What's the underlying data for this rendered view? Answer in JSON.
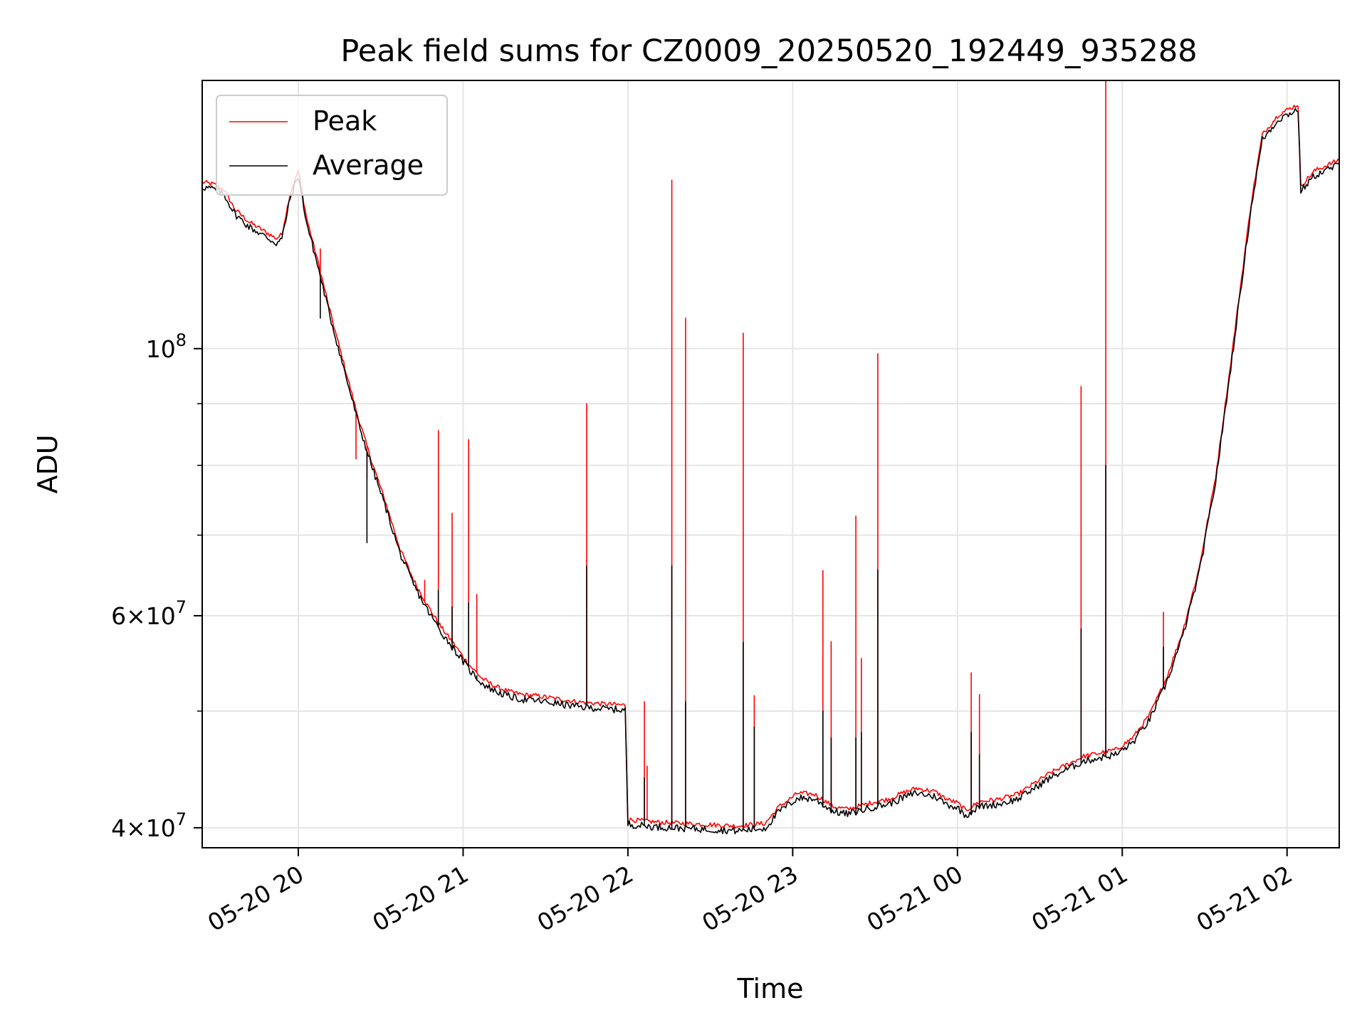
{
  "chart_data": {
    "type": "line",
    "title": "Peak field sums for CZ0009_20250520_192449_935288",
    "xlabel": "Time",
    "ylabel": "ADU",
    "yscale": "log",
    "xlim": [
      "2025-05-20 19:25",
      "2025-05-21 02:19"
    ],
    "ylim": [
      38500000,
      167000000
    ],
    "grid": true,
    "legend_position": "upper-left",
    "x_ticks": [
      {
        "value": "2025-05-20 20:00",
        "label": "05-20 20"
      },
      {
        "value": "2025-05-20 21:00",
        "label": "05-20 21"
      },
      {
        "value": "2025-05-20 22:00",
        "label": "05-20 22"
      },
      {
        "value": "2025-05-20 23:00",
        "label": "05-20 23"
      },
      {
        "value": "2025-05-21 00:00",
        "label": "05-21 00"
      },
      {
        "value": "2025-05-21 01:00",
        "label": "05-21 01"
      },
      {
        "value": "2025-05-21 02:00",
        "label": "05-21 02"
      }
    ],
    "y_ticks": [
      {
        "value": 40000000,
        "base": "4×10",
        "exp": "7"
      },
      {
        "value": 60000000,
        "base": "6×10",
        "exp": "7"
      },
      {
        "value": 100000000,
        "base": "10",
        "exp": "8"
      }
    ],
    "y_minor_ticks": [
      50000000,
      70000000,
      80000000,
      90000000
    ],
    "series": [
      {
        "name": "Peak",
        "color": "#ff0000",
        "baseline": [
          [
            "2025-05-20 19:25",
            137000000
          ],
          [
            "2025-05-20 19:29",
            136500000
          ],
          [
            "2025-05-20 19:33",
            135000000
          ],
          [
            "2025-05-20 19:37",
            130000000
          ],
          [
            "2025-05-20 19:42",
            127000000
          ],
          [
            "2025-05-20 19:47",
            125000000
          ],
          [
            "2025-05-20 19:52",
            123000000
          ],
          [
            "2025-05-20 19:54",
            124000000
          ],
          [
            "2025-05-20 19:57",
            134000000
          ],
          [
            "2025-05-20 20:00",
            140000000
          ],
          [
            "2025-05-20 20:03",
            128000000
          ],
          [
            "2025-05-20 20:07",
            118000000
          ],
          [
            "2025-05-20 20:12",
            106000000
          ],
          [
            "2025-05-20 20:17",
            96000000
          ],
          [
            "2025-05-20 20:22",
            87000000
          ],
          [
            "2025-05-20 20:27",
            80000000
          ],
          [
            "2025-05-20 20:32",
            74000000
          ],
          [
            "2025-05-20 20:37",
            68000000
          ],
          [
            "2025-05-20 20:42",
            64000000
          ],
          [
            "2025-05-20 20:47",
            61000000
          ],
          [
            "2025-05-20 20:52",
            58500000
          ],
          [
            "2025-05-20 20:57",
            56500000
          ],
          [
            "2025-05-20 21:02",
            54500000
          ],
          [
            "2025-05-20 21:07",
            53000000
          ],
          [
            "2025-05-20 21:12",
            52200000
          ],
          [
            "2025-05-20 21:17",
            51700000
          ],
          [
            "2025-05-20 21:22",
            51400000
          ],
          [
            "2025-05-20 21:27",
            51300000
          ],
          [
            "2025-05-20 21:32",
            51100000
          ],
          [
            "2025-05-20 21:37",
            50900000
          ],
          [
            "2025-05-20 21:42",
            50700000
          ],
          [
            "2025-05-20 21:47",
            50600000
          ],
          [
            "2025-05-20 21:52",
            50500000
          ],
          [
            "2025-05-20 21:59",
            50400000
          ],
          [
            "2025-05-20 22:00",
            40500000
          ],
          [
            "2025-05-20 22:10",
            40300000
          ],
          [
            "2025-05-20 22:20",
            40200000
          ],
          [
            "2025-05-20 22:30",
            40100000
          ],
          [
            "2025-05-20 22:40",
            40000000
          ],
          [
            "2025-05-20 22:50",
            40200000
          ],
          [
            "2025-05-20 22:55",
            41500000
          ],
          [
            "2025-05-20 23:02",
            42600000
          ],
          [
            "2025-05-20 23:08",
            42500000
          ],
          [
            "2025-05-20 23:15",
            41500000
          ],
          [
            "2025-05-20 23:20",
            41300000
          ],
          [
            "2025-05-20 23:25",
            41600000
          ],
          [
            "2025-05-20 23:30",
            41900000
          ],
          [
            "2025-05-20 23:35",
            42100000
          ],
          [
            "2025-05-20 23:40",
            42600000
          ],
          [
            "2025-05-20 23:45",
            43000000
          ],
          [
            "2025-05-20 23:52",
            42700000
          ],
          [
            "2025-05-20 23:56",
            42100000
          ],
          [
            "2025-05-21 00:00",
            41800000
          ],
          [
            "2025-05-21 00:03",
            41200000
          ],
          [
            "2025-05-21 00:08",
            41900000
          ],
          [
            "2025-05-21 00:15",
            42100000
          ],
          [
            "2025-05-21 00:22",
            42500000
          ],
          [
            "2025-05-21 00:28",
            43400000
          ],
          [
            "2025-05-21 00:34",
            44300000
          ],
          [
            "2025-05-21 00:40",
            45000000
          ],
          [
            "2025-05-21 00:46",
            45700000
          ],
          [
            "2025-05-21 00:52",
            46000000
          ],
          [
            "2025-05-21 00:58",
            46300000
          ],
          [
            "2025-05-21 01:04",
            47400000
          ],
          [
            "2025-05-21 01:10",
            49500000
          ],
          [
            "2025-05-21 01:16",
            53000000
          ],
          [
            "2025-05-21 01:22",
            58000000
          ],
          [
            "2025-05-21 01:28",
            65500000
          ],
          [
            "2025-05-21 01:34",
            78000000
          ],
          [
            "2025-05-21 01:39",
            95000000
          ],
          [
            "2025-05-21 01:43",
            112000000
          ],
          [
            "2025-05-21 01:47",
            132000000
          ],
          [
            "2025-05-21 01:51",
            150000000
          ],
          [
            "2025-05-21 01:57",
            156000000
          ],
          [
            "2025-05-21 02:04",
            159000000
          ],
          [
            "2025-05-21 02:05",
            136000000
          ],
          [
            "2025-05-21 02:10",
            140000000
          ],
          [
            "2025-05-21 02:19",
            143000000
          ]
        ],
        "spikes": [
          [
            "2025-05-20 20:08",
            121000000
          ],
          [
            "2025-05-20 20:21",
            81000000
          ],
          [
            "2025-05-20 20:25",
            78000000
          ],
          [
            "2025-05-20 20:46",
            64200000
          ],
          [
            "2025-05-20 20:51",
            85500000
          ],
          [
            "2025-05-20 20:56",
            73000000
          ],
          [
            "2025-05-20 21:02",
            84000000
          ],
          [
            "2025-05-20 21:05",
            62500000
          ],
          [
            "2025-05-20 21:45",
            90000000
          ],
          [
            "2025-05-20 22:06",
            50900000
          ],
          [
            "2025-05-20 22:07",
            45000000
          ],
          [
            "2025-05-20 22:16",
            138000000
          ],
          [
            "2025-05-20 22:21",
            106000000
          ],
          [
            "2025-05-20 22:42",
            103000000
          ],
          [
            "2025-05-20 22:46",
            51500000
          ],
          [
            "2025-05-20 23:11",
            65400000
          ],
          [
            "2025-05-20 23:14",
            57100000
          ],
          [
            "2025-05-20 23:23",
            72600000
          ],
          [
            "2025-05-20 23:25",
            55300000
          ],
          [
            "2025-05-20 23:31",
            99000000
          ],
          [
            "2025-05-21 00:05",
            53800000
          ],
          [
            "2025-05-21 00:08",
            51600000
          ],
          [
            "2025-05-21 00:45",
            93000000
          ],
          [
            "2025-05-21 00:54",
            170000000
          ],
          [
            "2025-05-21 01:15",
            60400000
          ]
        ]
      },
      {
        "name": "Average",
        "color": "#000000",
        "baseline": "same as Peak baseline, slightly lower",
        "spikes": [
          [
            "2025-05-20 20:08",
            106000000
          ],
          [
            "2025-05-20 20:25",
            69000000
          ],
          [
            "2025-05-20 20:51",
            63000000
          ],
          [
            "2025-05-20 20:56",
            61000000
          ],
          [
            "2025-05-20 21:02",
            61500000
          ],
          [
            "2025-05-20 21:05",
            53500000
          ],
          [
            "2025-05-20 21:45",
            66000000
          ],
          [
            "2025-05-20 22:06",
            44000000
          ],
          [
            "2025-05-20 22:16",
            66000000
          ],
          [
            "2025-05-20 22:21",
            50900000
          ],
          [
            "2025-05-20 22:42",
            57000000
          ],
          [
            "2025-05-20 22:46",
            48500000
          ],
          [
            "2025-05-20 23:11",
            50000000
          ],
          [
            "2025-05-20 23:14",
            47500000
          ],
          [
            "2025-05-20 23:23",
            47500000
          ],
          [
            "2025-05-20 23:25",
            48000000
          ],
          [
            "2025-05-20 23:31",
            65500000
          ],
          [
            "2025-05-21 00:05",
            48000000
          ],
          [
            "2025-05-21 00:08",
            46000000
          ],
          [
            "2025-05-21 00:45",
            58500000
          ],
          [
            "2025-05-21 00:54",
            80000000
          ],
          [
            "2025-05-21 01:15",
            56500000
          ]
        ]
      }
    ]
  }
}
